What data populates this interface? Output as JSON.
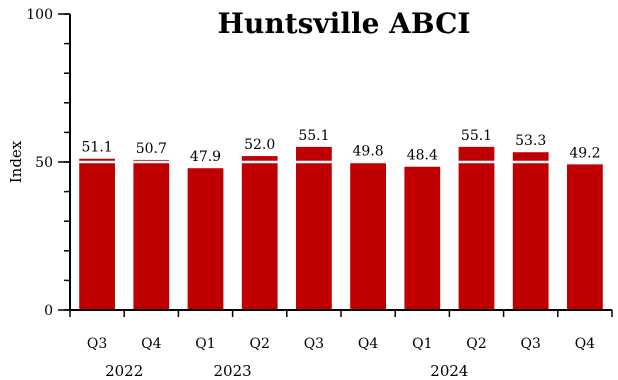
{
  "chart_data": {
    "type": "bar",
    "title": "Huntsville ABCI",
    "ylabel": "Index",
    "xlabel": "",
    "ylim": [
      0,
      100
    ],
    "yticks": [
      0,
      50,
      100
    ],
    "ytick_labels": [
      "0",
      "50",
      "100"
    ],
    "categories": [
      "Q3",
      "Q4",
      "Q1",
      "Q2",
      "Q3",
      "Q4",
      "Q1",
      "Q2",
      "Q3",
      "Q4"
    ],
    "years": [
      {
        "label": "2022",
        "start": 0,
        "end": 1
      },
      {
        "label": "2023",
        "start": 2,
        "end": 3
      },
      {
        "label": "2024",
        "start": 4,
        "end": 9
      }
    ],
    "values": [
      51.1,
      50.7,
      47.9,
      52.0,
      55.1,
      49.8,
      48.4,
      55.1,
      53.3,
      49.2
    ],
    "value_labels": [
      "51.1",
      "50.7",
      "47.9",
      "52.0",
      "55.1",
      "49.8",
      "48.4",
      "55.1",
      "53.3",
      "49.2"
    ],
    "reference_value": 50,
    "grid": false,
    "colors": {
      "bar": "#c00000",
      "reference_line": "#ffffff",
      "axis": "#000000"
    }
  }
}
